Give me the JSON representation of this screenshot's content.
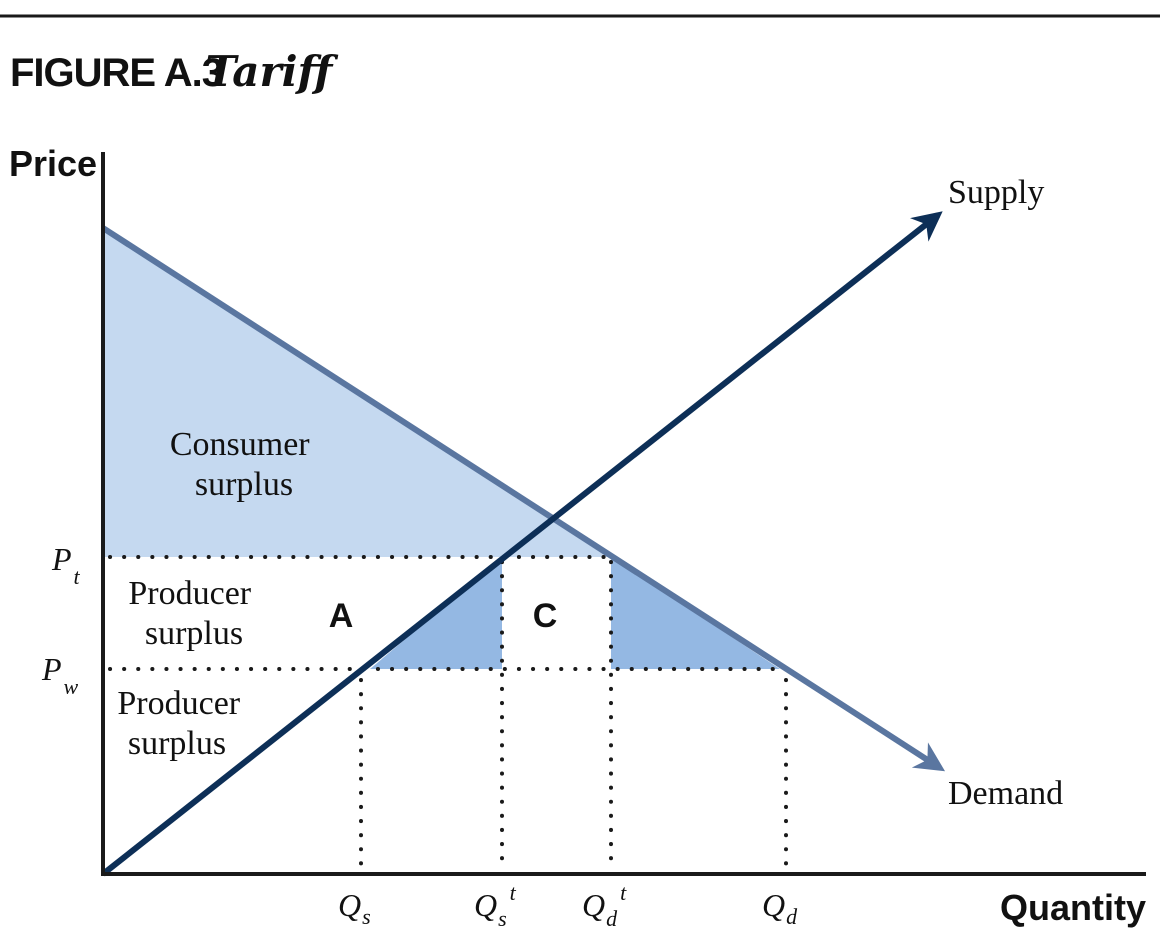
{
  "figure": {
    "number": "FIGURE A.3",
    "title": "Tariff"
  },
  "axes": {
    "y_label": "Price",
    "x_label": "Quantity"
  },
  "curves": {
    "supply": "Supply",
    "demand": "Demand"
  },
  "regions": {
    "consumer_surplus": [
      "Consumer",
      "surplus"
    ],
    "producer_surplus_upper": [
      "Producer",
      "surplus"
    ],
    "producer_surplus_lower": [
      "Producer",
      "surplus"
    ],
    "area_a": "A",
    "area_c": "C"
  },
  "price_ticks": {
    "pt": {
      "main": "P",
      "sub": "t"
    },
    "pw": {
      "main": "P",
      "sub": "w"
    }
  },
  "quantity_ticks": {
    "qs": {
      "main": "Q",
      "sub": "s",
      "sup": ""
    },
    "qst": {
      "main": "Q",
      "sub": "s",
      "sup": "t"
    },
    "qdt": {
      "main": "Q",
      "sub": "d",
      "sup": "t"
    },
    "qd": {
      "main": "Q",
      "sub": "d",
      "sup": ""
    }
  },
  "colors": {
    "consumer_surplus_fill": "#c5d9f0",
    "triangle_fill": "#94b8e3",
    "supply_line": "#0d2f57",
    "demand_line": "#5a76a0",
    "rule": "#1a1a1a"
  }
}
